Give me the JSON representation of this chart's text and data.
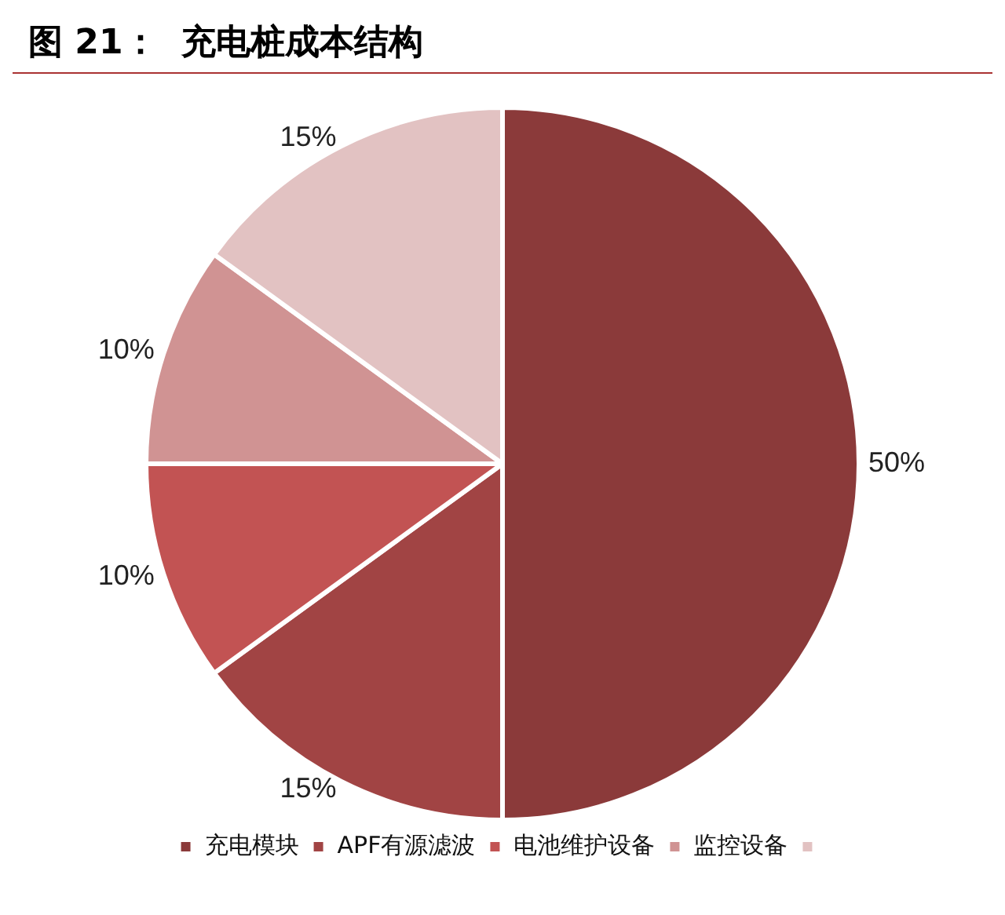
{
  "chart_data": {
    "type": "pie",
    "title": "图 21：  充电桩成本结构",
    "categories": [
      "充电模块",
      "APF有源滤波",
      "电池维护设备",
      "监控设备",
      null
    ],
    "values": [
      50,
      15,
      10,
      10,
      15
    ],
    "colors": [
      "#8b3a3a",
      "#a14444",
      "#c25353",
      "#d09393",
      "#e2c2c2"
    ],
    "value_labels": [
      "50%",
      "15%",
      "10%",
      "10%",
      "15%"
    ],
    "legend": "bottom"
  }
}
